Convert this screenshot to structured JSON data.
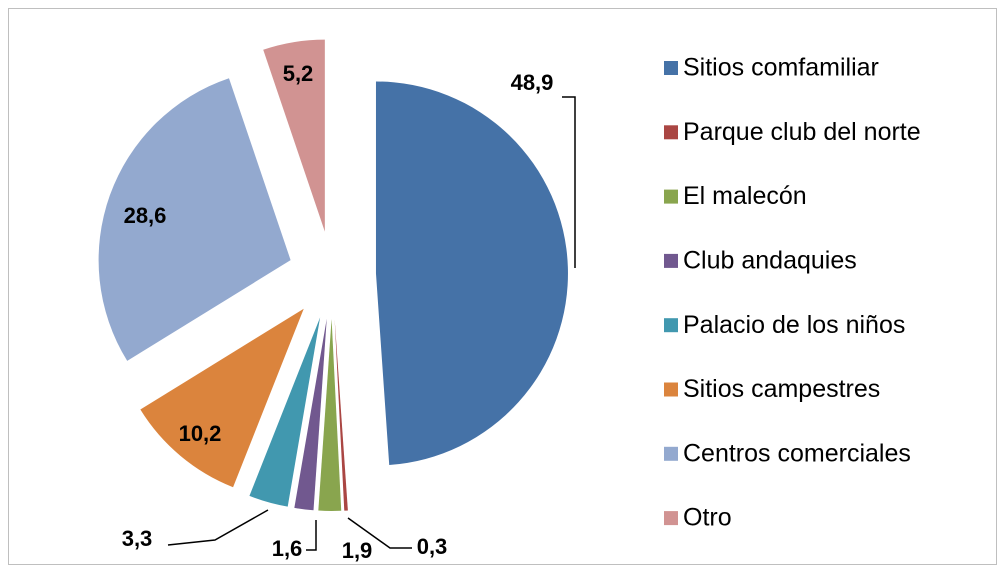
{
  "chart_data": {
    "type": "pie",
    "categories": [
      "Sitios comfamiliar",
      "Parque club del norte",
      "El malecón",
      "Club andaquies",
      "Palacio de los niños",
      "Sitios campestres",
      "Centros comerciales",
      "Otro"
    ],
    "values": [
      48.9,
      0.3,
      1.9,
      1.6,
      3.3,
      10.2,
      28.6,
      5.2
    ],
    "value_labels": [
      "48,9",
      "0,3",
      "1,9",
      "1,6",
      "3,3",
      "10,2",
      "28,6",
      "5,2"
    ],
    "colors": [
      "#4572A7",
      "#AA4643",
      "#89A54E",
      "#71588F",
      "#4198AF",
      "#DB843D",
      "#93A9CF",
      "#D19392"
    ],
    "legend": "right"
  }
}
